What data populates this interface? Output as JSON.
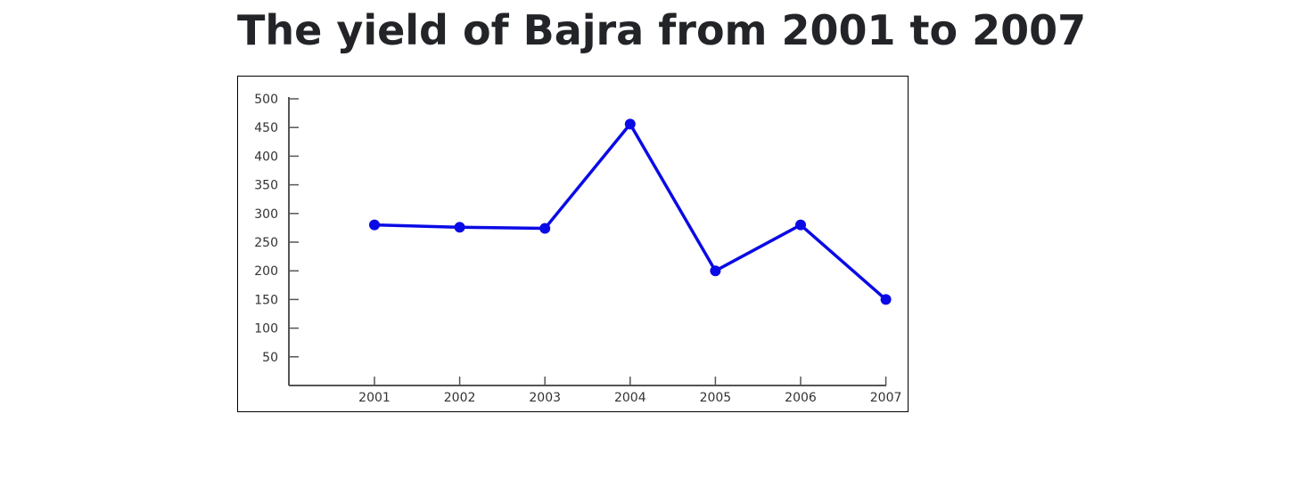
{
  "title": "The yield of Bajra from 2001 to 2007",
  "chart_data": {
    "type": "line",
    "title": "The yield of Bajra from 2001 to 2007",
    "categories": [
      "2001",
      "2002",
      "2003",
      "2004",
      "2005",
      "2006",
      "2007"
    ],
    "series": [
      {
        "values": [
          280,
          276,
          274,
          456,
          200,
          280,
          150
        ],
        "color": "#0a0ae6"
      }
    ],
    "yticks": [
      50,
      100,
      150,
      200,
      250,
      300,
      350,
      400,
      450,
      500
    ],
    "ylim": [
      0,
      500
    ],
    "xlabel": "",
    "ylabel": "",
    "grid": false,
    "legend": "none",
    "axis_color": "#555555"
  }
}
